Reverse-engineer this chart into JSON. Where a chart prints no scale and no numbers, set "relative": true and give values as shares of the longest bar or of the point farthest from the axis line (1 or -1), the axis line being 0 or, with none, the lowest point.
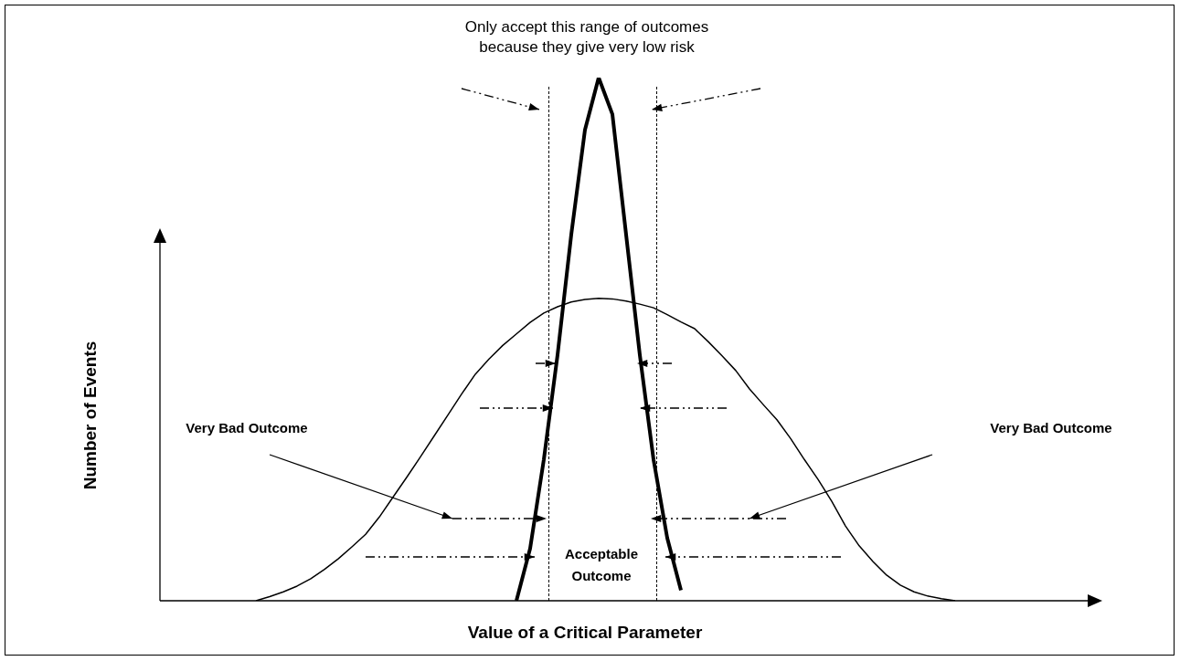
{
  "chart_data": {
    "type": "line",
    "relative": true,
    "xlabel": "Value of a Critical Parameter",
    "legend": false,
    "marker": "none",
    "line_style": "solid",
    "categories": [
      null,
      null,
      null,
      null,
      null,
      null,
      null,
      null,
      null,
      null,
      null,
      null,
      null,
      null,
      null,
      null,
      null,
      null,
      null,
      null,
      null,
      null,
      null,
      null,
      null,
      null,
      null,
      null,
      null,
      null,
      null,
      null,
      null,
      null,
      null,
      null,
      null,
      null,
      null,
      null,
      null,
      null,
      null,
      null,
      null,
      null,
      null,
      null,
      null,
      null,
      null,
      null
    ],
    "series": [
      {
        "color": "#000000",
        "values": [
          0,
          0.008,
          0.017,
          0.028,
          0.042,
          0.06,
          0.08,
          0.103,
          0.127,
          0.16,
          0.198,
          0.236,
          0.275,
          0.315,
          0.355,
          0.395,
          0.433,
          0.462,
          0.488,
          0.51,
          0.532,
          0.55,
          0.562,
          0.571,
          0.576,
          0.578,
          0.577,
          0.573,
          0.567,
          0.56,
          0.547,
          0.533,
          0.52,
          0.495,
          0.468,
          0.44,
          0.405,
          0.375,
          0.346,
          0.31,
          0.27,
          0.232,
          0.19,
          0.143,
          0.105,
          0.075,
          0.049,
          0.03,
          0.017,
          0.009,
          0.004,
          0
        ]
      },
      {
        "color": "#000000",
        "values": [
          null,
          null,
          null,
          null,
          null,
          null,
          null,
          null,
          null,
          null,
          null,
          null,
          null,
          null,
          null,
          null,
          null,
          null,
          null,
          0,
          0.1,
          0.27,
          0.47,
          0.7,
          0.9,
          1,
          0.93,
          0.7,
          0.47,
          0.27,
          0.12,
          0.02,
          null,
          null,
          null,
          null,
          null,
          null,
          null,
          null,
          null,
          null,
          null,
          null,
          null,
          null,
          null,
          null,
          null,
          null,
          null,
          null
        ]
      }
    ],
    "annotations": [
      "Only accept this range of outcomes because they give very low risk",
      "Very Bad Outcome",
      "Very Bad Outcome",
      "Acceptable Outcome",
      "Number of Events"
    ]
  }
}
